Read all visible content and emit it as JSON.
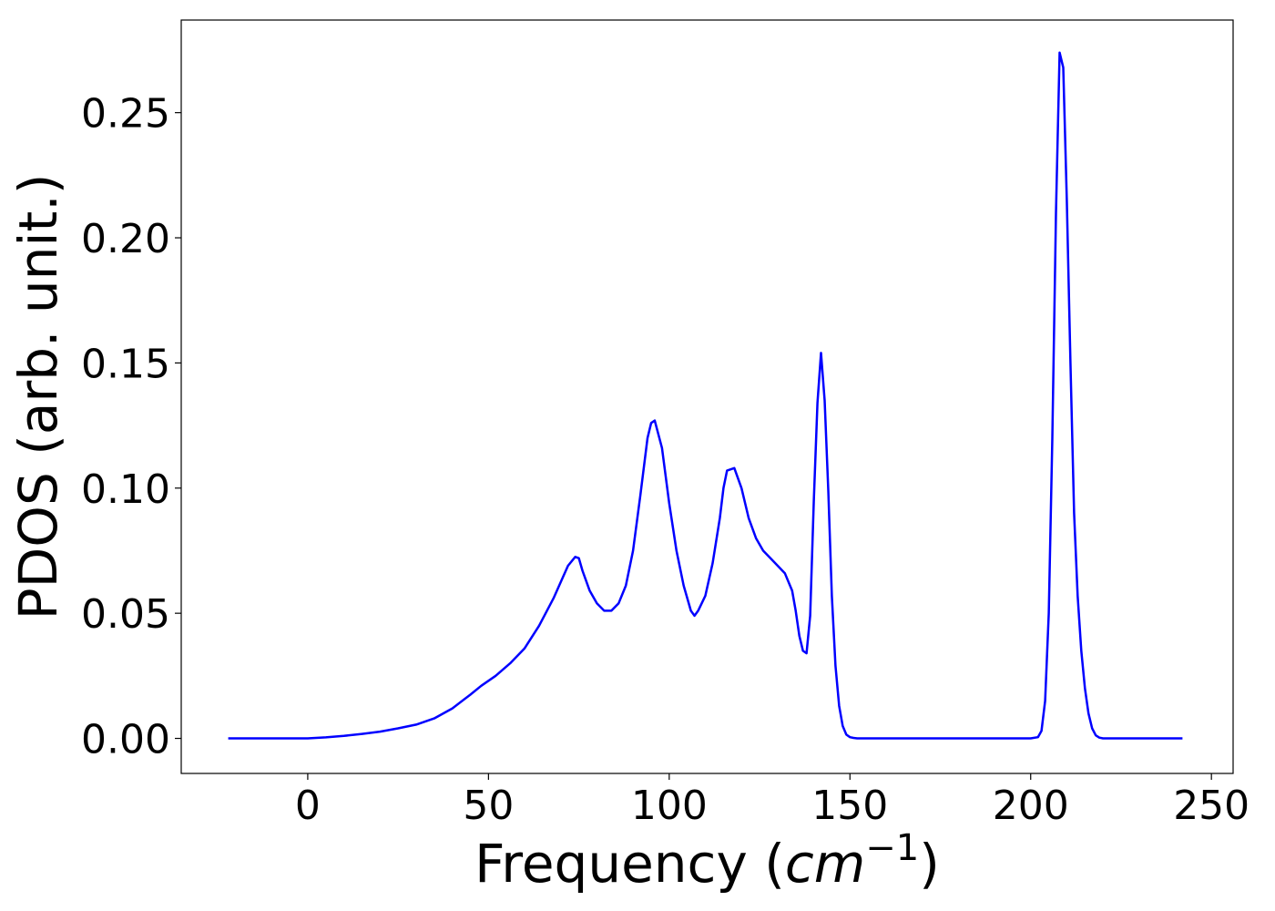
{
  "chart_data": {
    "type": "line",
    "xlabel": {
      "prefix": "Frequency (",
      "math": "cm",
      "sup": "−1",
      "suffix": ")"
    },
    "ylabel": "PDOS (arb. unit.)",
    "xlim": [
      -35,
      256
    ],
    "ylim": [
      -0.014,
      0.287
    ],
    "xticks": [
      0,
      50,
      100,
      150,
      200,
      250
    ],
    "yticks": [
      0.0,
      0.05,
      0.1,
      0.15,
      0.2,
      0.25
    ],
    "ytick_labels": [
      "0.00",
      "0.05",
      "0.10",
      "0.15",
      "0.20",
      "0.25"
    ],
    "grid": false,
    "series": [
      {
        "color": "#0000ff",
        "x": [
          -22,
          0,
          5,
          10,
          15,
          20,
          25,
          30,
          35,
          40,
          45,
          48,
          52,
          56,
          60,
          64,
          68,
          72,
          74,
          75,
          76,
          78,
          80,
          82,
          84,
          86,
          88,
          90,
          92,
          94,
          95,
          96,
          98,
          100,
          102,
          104,
          106,
          107,
          108,
          110,
          112,
          114,
          115,
          116,
          118,
          120,
          122,
          124,
          126,
          128,
          130,
          132,
          134,
          135,
          136,
          137,
          138,
          139,
          140,
          141,
          142,
          143,
          144,
          145,
          146,
          147,
          148,
          149,
          150,
          151,
          152,
          154,
          156,
          160,
          170,
          180,
          190,
          200,
          202,
          203,
          204,
          205,
          206,
          207,
          208,
          209,
          210,
          211,
          212,
          213,
          214,
          215,
          216,
          217,
          218,
          219,
          220,
          221,
          222,
          223,
          224,
          225,
          227,
          230,
          242
        ],
        "y": [
          0.0,
          0.0,
          0.0004,
          0.001,
          0.0018,
          0.0027,
          0.004,
          0.0055,
          0.008,
          0.012,
          0.0175,
          0.021,
          0.025,
          0.03,
          0.036,
          0.045,
          0.056,
          0.069,
          0.0725,
          0.072,
          0.067,
          0.059,
          0.054,
          0.051,
          0.051,
          0.054,
          0.061,
          0.075,
          0.097,
          0.12,
          0.126,
          0.127,
          0.116,
          0.094,
          0.075,
          0.061,
          0.051,
          0.049,
          0.051,
          0.057,
          0.07,
          0.088,
          0.1,
          0.107,
          0.108,
          0.1,
          0.088,
          0.08,
          0.075,
          0.072,
          0.069,
          0.066,
          0.059,
          0.051,
          0.041,
          0.035,
          0.034,
          0.049,
          0.095,
          0.134,
          0.154,
          0.135,
          0.099,
          0.057,
          0.029,
          0.013,
          0.005,
          0.0015,
          0.0005,
          0.0002,
          0.0,
          0.0,
          0.0,
          0.0,
          0.0,
          0.0,
          0.0,
          0.0,
          0.0005,
          0.003,
          0.015,
          0.05,
          0.12,
          0.21,
          0.274,
          0.268,
          0.215,
          0.15,
          0.09,
          0.057,
          0.035,
          0.02,
          0.01,
          0.004,
          0.0012,
          0.0003,
          0.0,
          0.0,
          0.0,
          0.0,
          0.0,
          0.0,
          0.0,
          0.0,
          0.0
        ]
      }
    ]
  }
}
